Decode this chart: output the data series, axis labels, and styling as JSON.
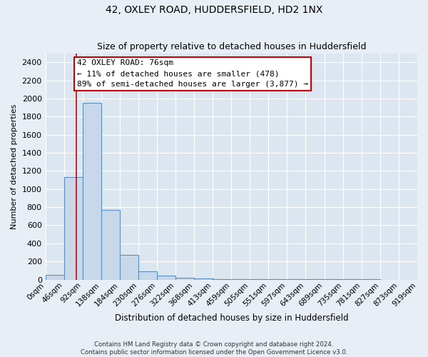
{
  "title": "42, OXLEY ROAD, HUDDERSFIELD, HD2 1NX",
  "subtitle": "Size of property relative to detached houses in Huddersfield",
  "xlabel": "Distribution of detached houses by size in Huddersfield",
  "ylabel": "Number of detached properties",
  "bin_edges": [
    0,
    46,
    92,
    138,
    184,
    230,
    276,
    322,
    368,
    413,
    459,
    505,
    551,
    597,
    643,
    689,
    735,
    781,
    827,
    873,
    919
  ],
  "bar_heights": [
    55,
    1130,
    1950,
    770,
    275,
    90,
    42,
    22,
    12,
    8,
    5,
    4,
    3,
    2,
    2,
    1,
    1,
    1,
    0,
    0
  ],
  "bar_fill_color": "#c8d8ea",
  "bar_edge_color": "#5b8fbf",
  "ylim": [
    0,
    2500
  ],
  "yticks": [
    0,
    200,
    400,
    600,
    800,
    1000,
    1200,
    1400,
    1600,
    1800,
    2000,
    2200,
    2400
  ],
  "vline_x": 76,
  "annotation_title": "42 OXLEY ROAD: 76sqm",
  "annotation_line1": "← 11% of detached houses are smaller (478)",
  "annotation_line2": "89% of semi-detached houses are larger (3,877) →",
  "annotation_box_color": "white",
  "annotation_box_edge": "#cc0000",
  "vline_color": "#cc0000",
  "footnote1": "Contains HM Land Registry data © Crown copyright and database right 2024.",
  "footnote2": "Contains public sector information licensed under the Open Government Licence v3.0.",
  "background_color": "#e8eef5",
  "plot_bg_color": "#dce6f0",
  "grid_color": "white",
  "title_fontsize": 10,
  "subtitle_fontsize": 9,
  "ylabel_fontsize": 8,
  "xlabel_fontsize": 8.5,
  "tick_fontsize": 7.5
}
